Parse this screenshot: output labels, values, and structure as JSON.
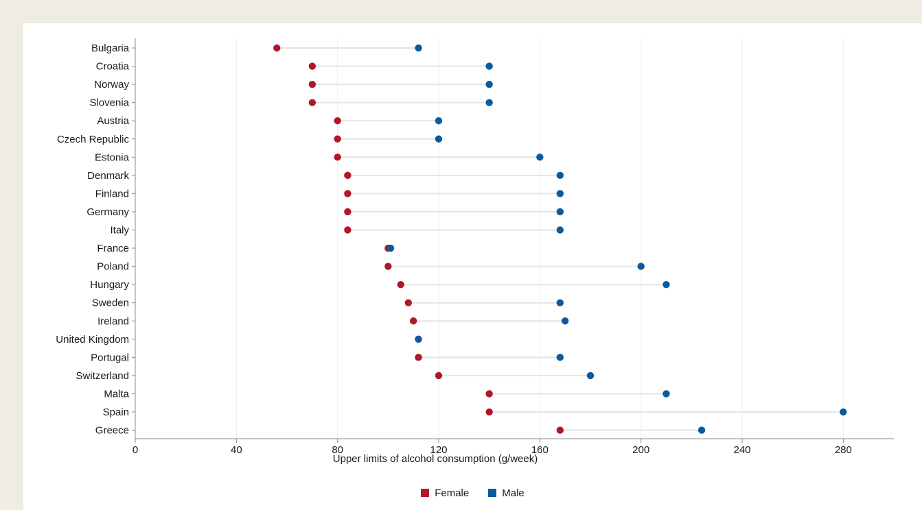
{
  "colors": {
    "female": "#b1172b",
    "male": "#0b5a9e",
    "connector": "#e4e4e4",
    "grid": "#ededed",
    "axis": "#888888"
  },
  "chart_data": {
    "type": "scatter",
    "subtype": "dumbbell",
    "title": "",
    "xlabel": "Upper limits of alcohol consumption (g/week)",
    "ylabel": "",
    "xlim": [
      0,
      300
    ],
    "xticks": [
      0,
      40,
      80,
      120,
      160,
      200,
      240,
      280
    ],
    "grid": "vertical",
    "legend_position": "bottom-center",
    "categories": [
      "Bulgaria",
      "Croatia",
      "Norway",
      "Slovenia",
      "Austria",
      "Czech Republic",
      "Estonia",
      "Denmark",
      "Finland",
      "Germany",
      "Italy",
      "France",
      "Poland",
      "Hungary",
      "Sweden",
      "Ireland",
      "United Kingdom",
      "Portugal",
      "Switzerland",
      "Malta",
      "Spain",
      "Greece"
    ],
    "series": [
      {
        "name": "Female",
        "values": [
          56,
          70,
          70,
          70,
          80,
          80,
          80,
          84,
          84,
          84,
          84,
          100,
          100,
          105,
          108,
          110,
          112,
          112,
          120,
          140,
          140,
          168
        ]
      },
      {
        "name": "Male",
        "values": [
          112,
          140,
          140,
          140,
          120,
          120,
          160,
          168,
          168,
          168,
          168,
          101,
          200,
          210,
          168,
          170,
          112,
          168,
          180,
          210,
          280,
          224
        ]
      }
    ]
  }
}
